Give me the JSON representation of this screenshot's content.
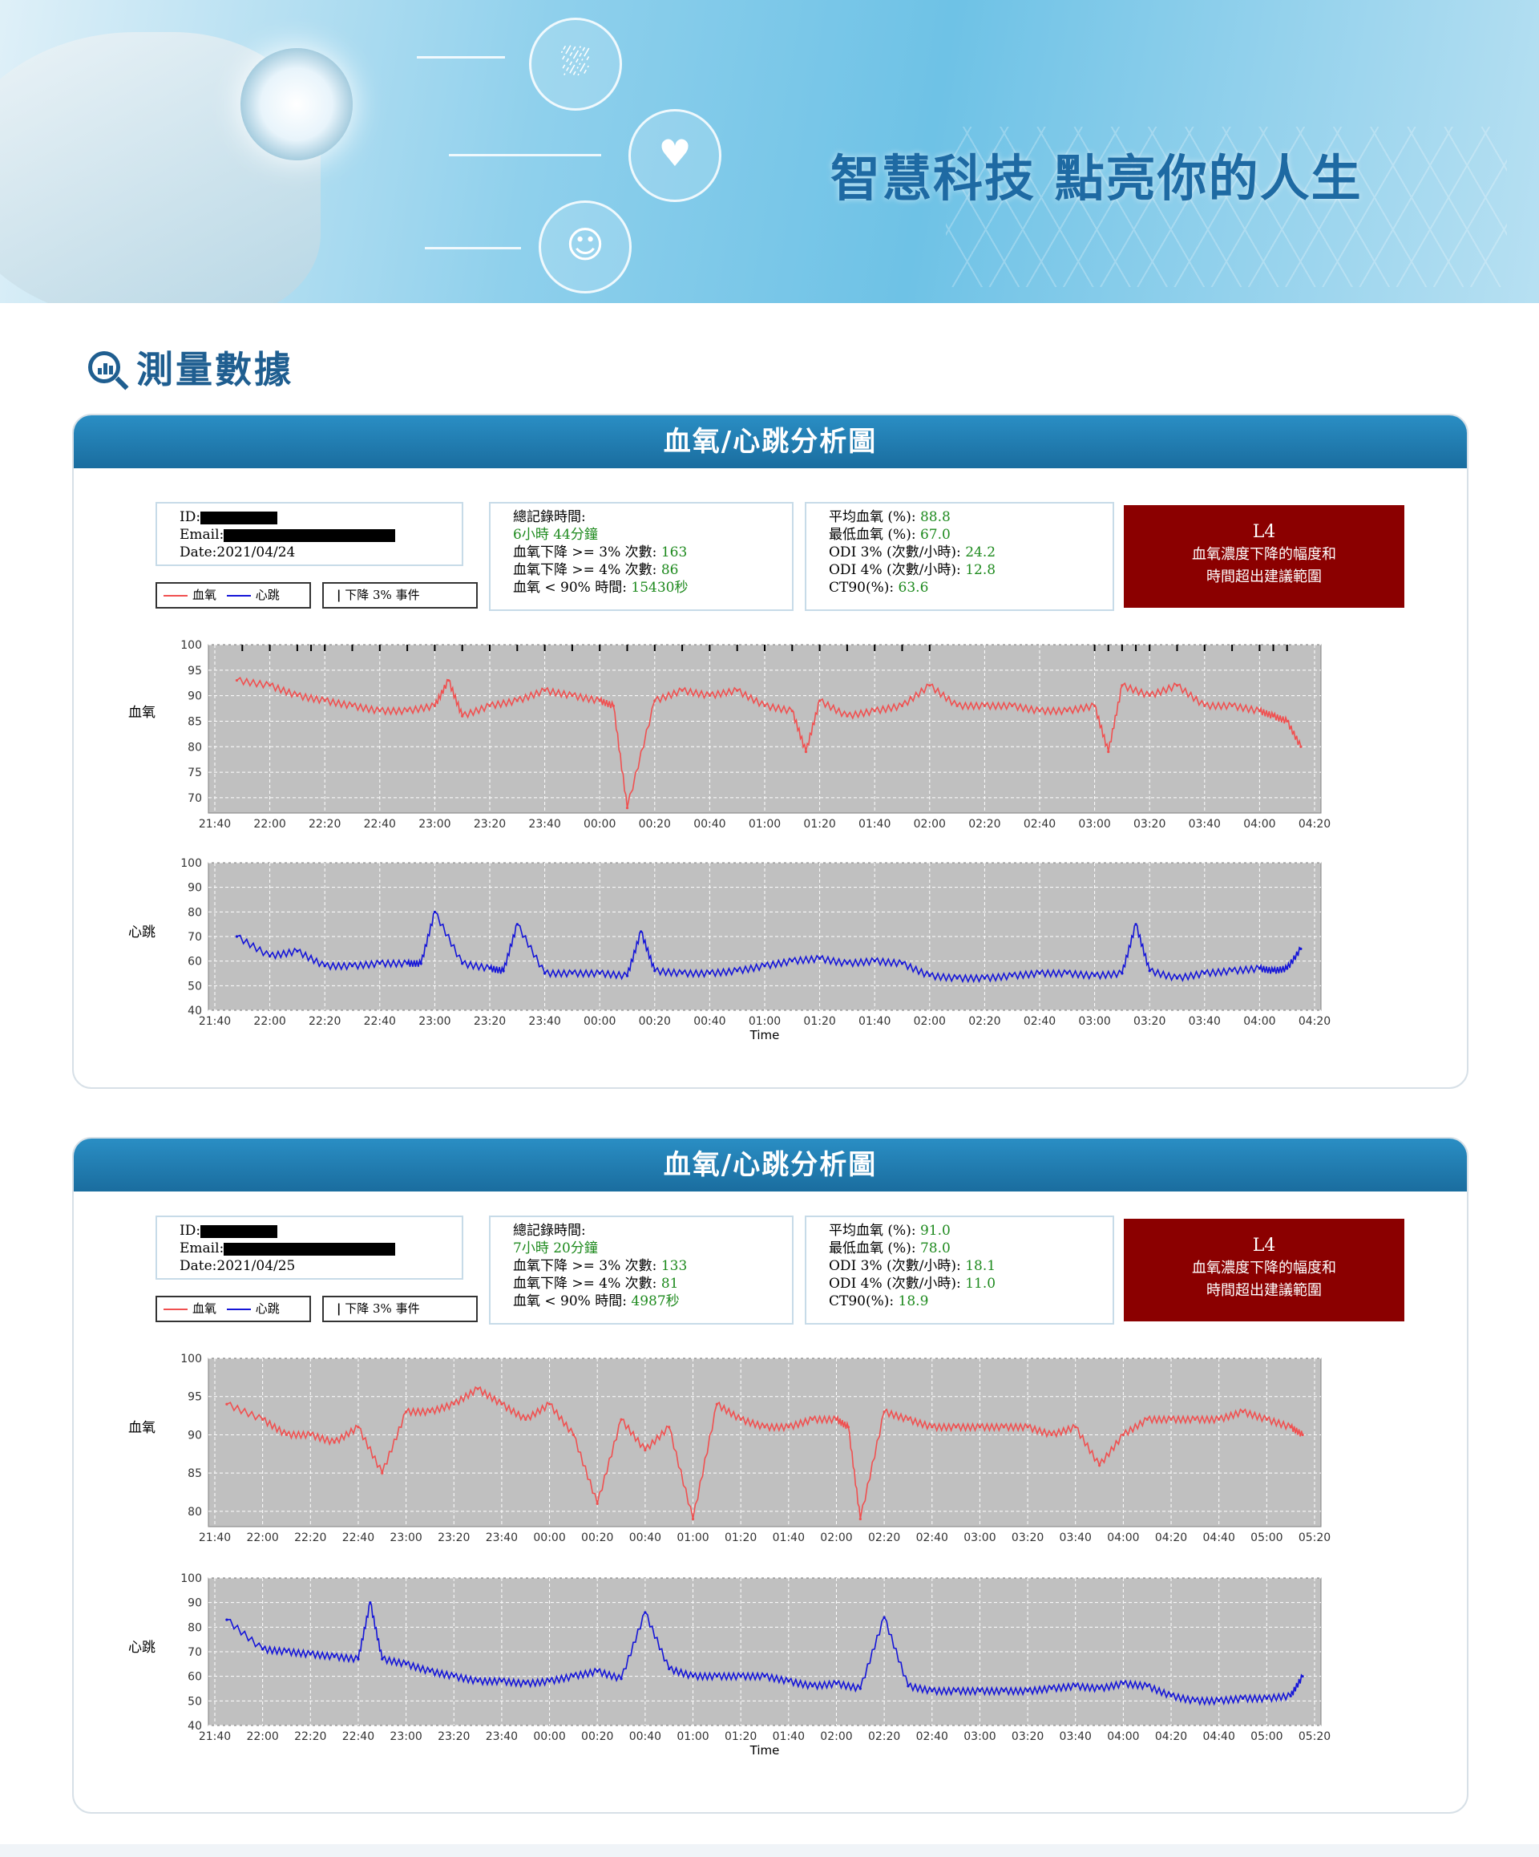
{
  "banner": {
    "slogan": "智慧科技 點亮你的人生",
    "icons": [
      "bed-sleep-icon",
      "heartbeat-icon",
      "breathing-face-icon",
      "stethoscope-icon"
    ]
  },
  "section": {
    "title": "測量數據",
    "icon": "search-chart-icon"
  },
  "reports": [
    {
      "title": "血氧/心跳分析圖",
      "info": {
        "id_label": "ID:",
        "email_label": "Email:",
        "date": "Date:2021/04/24"
      },
      "legend": {
        "spo2": "血氧",
        "hr": "心跳",
        "event": "下降 3% 事件"
      },
      "stats1": {
        "total_label": "總記錄時間:",
        "total_value": "6小時 44分鐘",
        "drop3_label": "血氧下降 >= 3% 次數:",
        "drop3_value": "163",
        "drop4_label": "血氧下降 >= 4% 次數:",
        "drop4_value": "86",
        "lt90_label": "血氧 < 90% 時間:",
        "lt90_value": "15430秒"
      },
      "stats2": {
        "avg_label": "平均血氧 (%):",
        "avg_value": "88.8",
        "min_label": "最低血氧 (%):",
        "min_value": "67.0",
        "odi3_label": "ODI 3% (次數/小時):",
        "odi3_value": "24.2",
        "odi4_label": "ODI 4% (次數/小時):",
        "odi4_value": "12.8",
        "ct90_label": "CT90(%):",
        "ct90_value": "63.6"
      },
      "alert": {
        "level": "L4",
        "line1": "血氧濃度下降的幅度和",
        "line2": "時間超出建議範圍"
      }
    },
    {
      "title": "血氧/心跳分析圖",
      "info": {
        "id_label": "ID:",
        "email_label": "Email:",
        "date": "Date:2021/04/25"
      },
      "legend": {
        "spo2": "血氧",
        "hr": "心跳",
        "event": "下降 3% 事件"
      },
      "stats1": {
        "total_label": "總記錄時間:",
        "total_value": "7小時 20分鐘",
        "drop3_label": "血氧下降 >= 3% 次數:",
        "drop3_value": "133",
        "drop4_label": "血氧下降 >= 4% 次數:",
        "drop4_value": "81",
        "lt90_label": "血氧 < 90% 時間:",
        "lt90_value": "4987秒"
      },
      "stats2": {
        "avg_label": "平均血氧 (%):",
        "avg_value": "91.0",
        "min_label": "最低血氧 (%):",
        "min_value": "78.0",
        "odi3_label": "ODI 3% (次數/小時):",
        "odi3_value": "18.1",
        "odi4_label": "ODI 4% (次數/小時):",
        "odi4_value": "11.0",
        "ct90_label": "CT90(%):",
        "ct90_value": "18.9"
      },
      "alert": {
        "level": "L4",
        "line1": "血氧濃度下降的幅度和",
        "line2": "時間超出建議範圍"
      }
    }
  ],
  "colors": {
    "spo2": "#f05050",
    "hr": "#1515d8",
    "plot_bg": "#c0c0c0",
    "header": "#1f7bb0",
    "alert": "#8b0000"
  },
  "chart_data": [
    {
      "type": "line",
      "ylabel": "血氧",
      "xlabel": "",
      "ylim": [
        67,
        100
      ],
      "yticks": [
        100,
        95,
        90,
        85,
        80,
        75,
        70
      ],
      "xticks": [
        "21:40",
        "22:00",
        "22:20",
        "22:40",
        "23:00",
        "23:20",
        "23:40",
        "00:00",
        "00:20",
        "00:40",
        "01:00",
        "01:20",
        "01:40",
        "02:00",
        "02:20",
        "02:40",
        "03:00",
        "03:20",
        "03:40",
        "04:00",
        "04:20"
      ],
      "series": [
        {
          "name": "血氧",
          "color": "#f05050",
          "x": [
            "21:48",
            "22:00",
            "22:10",
            "22:20",
            "22:30",
            "22:40",
            "22:50",
            "23:00",
            "23:05",
            "23:10",
            "23:20",
            "23:30",
            "23:40",
            "23:50",
            "00:00",
            "00:05",
            "00:10",
            "00:20",
            "00:30",
            "00:40",
            "00:50",
            "01:00",
            "01:10",
            "01:15",
            "01:20",
            "01:30",
            "01:40",
            "01:50",
            "02:00",
            "02:10",
            "02:20",
            "02:30",
            "02:40",
            "02:50",
            "03:00",
            "03:05",
            "03:10",
            "03:20",
            "03:30",
            "03:40",
            "03:50",
            "04:00",
            "04:05",
            "04:10",
            "04:15"
          ],
          "y": [
            93,
            92,
            90,
            89,
            88,
            87,
            87,
            88,
            93,
            86,
            88,
            89,
            91,
            90,
            89,
            88,
            68,
            89,
            91,
            90,
            91,
            88,
            87,
            79,
            89,
            86,
            87,
            88,
            92,
            88,
            88,
            88,
            87,
            87,
            88,
            79,
            92,
            90,
            92,
            88,
            88,
            87,
            86,
            85,
            80
          ]
        },
        {
          "name": "下降 3% 事件",
          "type": "event",
          "color": "#000000",
          "x": [
            "21:50",
            "22:00",
            "22:10",
            "22:15",
            "22:20",
            "22:30",
            "22:40",
            "22:50",
            "23:00",
            "23:10",
            "23:20",
            "23:30",
            "23:40",
            "23:50",
            "00:00",
            "00:10",
            "00:20",
            "00:30",
            "00:40",
            "00:50",
            "01:00",
            "01:10",
            "01:20",
            "01:30",
            "01:40",
            "01:50",
            "02:00",
            "03:00",
            "03:05",
            "03:10",
            "03:15",
            "03:20",
            "03:30",
            "03:40",
            "03:50",
            "04:00",
            "04:05",
            "04:10"
          ]
        }
      ]
    },
    {
      "type": "line",
      "ylabel": "心跳",
      "xlabel": "Time",
      "ylim": [
        40,
        100
      ],
      "yticks": [
        100,
        90,
        80,
        70,
        60,
        50,
        40
      ],
      "xticks": [
        "21:40",
        "22:00",
        "22:20",
        "22:40",
        "23:00",
        "23:20",
        "23:40",
        "00:00",
        "00:20",
        "00:40",
        "01:00",
        "01:20",
        "01:40",
        "02:00",
        "02:20",
        "02:40",
        "03:00",
        "03:20",
        "03:40",
        "04:00",
        "04:20"
      ],
      "series": [
        {
          "name": "心跳",
          "color": "#1515d8",
          "x": [
            "21:48",
            "22:00",
            "22:10",
            "22:20",
            "22:30",
            "22:40",
            "22:50",
            "22:55",
            "23:00",
            "23:10",
            "23:20",
            "23:25",
            "23:30",
            "23:40",
            "23:50",
            "00:00",
            "00:10",
            "00:15",
            "00:20",
            "00:30",
            "00:40",
            "00:50",
            "01:00",
            "01:10",
            "01:20",
            "01:30",
            "01:40",
            "01:50",
            "02:00",
            "02:10",
            "02:20",
            "02:30",
            "02:40",
            "02:50",
            "03:00",
            "03:10",
            "03:15",
            "03:20",
            "03:30",
            "03:40",
            "03:50",
            "04:00",
            "04:05",
            "04:10",
            "04:15"
          ],
          "y": [
            70,
            62,
            64,
            58,
            58,
            59,
            59,
            59,
            80,
            59,
            57,
            56,
            75,
            55,
            55,
            55,
            54,
            72,
            56,
            55,
            55,
            56,
            58,
            60,
            61,
            59,
            60,
            59,
            54,
            53,
            53,
            54,
            55,
            55,
            54,
            55,
            75,
            56,
            53,
            55,
            56,
            57,
            56,
            57,
            65
          ]
        }
      ]
    },
    {
      "type": "line",
      "ylabel": "血氧",
      "xlabel": "",
      "ylim": [
        78,
        100
      ],
      "yticks": [
        100,
        95,
        90,
        85,
        80
      ],
      "xticks": [
        "21:40",
        "22:00",
        "22:20",
        "22:40",
        "23:00",
        "23:20",
        "23:40",
        "00:00",
        "00:20",
        "00:40",
        "01:00",
        "01:20",
        "01:40",
        "02:00",
        "02:20",
        "02:40",
        "03:00",
        "03:20",
        "03:40",
        "04:00",
        "04:20",
        "04:40",
        "05:00",
        "05:20"
      ],
      "series": [
        {
          "name": "血氧",
          "color": "#f05050",
          "x": [
            "21:45",
            "22:00",
            "22:10",
            "22:20",
            "22:30",
            "22:40",
            "22:50",
            "23:00",
            "23:10",
            "23:20",
            "23:30",
            "23:40",
            "23:50",
            "00:00",
            "00:10",
            "00:20",
            "00:30",
            "00:40",
            "00:50",
            "01:00",
            "01:10",
            "01:20",
            "01:30",
            "01:40",
            "01:50",
            "02:00",
            "02:05",
            "02:10",
            "02:20",
            "02:30",
            "02:40",
            "02:50",
            "03:00",
            "03:10",
            "03:20",
            "03:30",
            "03:40",
            "03:50",
            "04:00",
            "04:10",
            "04:20",
            "04:30",
            "04:40",
            "04:50",
            "05:00",
            "05:10",
            "05:15"
          ],
          "y": [
            94,
            92,
            90,
            90,
            89,
            91,
            85,
            93,
            93,
            94,
            96,
            94,
            92,
            94,
            90,
            81,
            92,
            88,
            91,
            79,
            94,
            92,
            91,
            91,
            92,
            92,
            91,
            79,
            93,
            92,
            91,
            91,
            91,
            91,
            91,
            90,
            91,
            86,
            90,
            92,
            92,
            92,
            92,
            93,
            92,
            91,
            90
          ]
        }
      ]
    },
    {
      "type": "line",
      "ylabel": "心跳",
      "xlabel": "Time",
      "ylim": [
        40,
        100
      ],
      "yticks": [
        100,
        90,
        80,
        70,
        60,
        50,
        40
      ],
      "xticks": [
        "21:40",
        "22:00",
        "22:20",
        "22:40",
        "23:00",
        "23:20",
        "23:40",
        "00:00",
        "00:20",
        "00:40",
        "01:00",
        "01:20",
        "01:40",
        "02:00",
        "02:20",
        "02:40",
        "03:00",
        "03:20",
        "03:40",
        "04:00",
        "04:20",
        "04:40",
        "05:00",
        "05:20"
      ],
      "series": [
        {
          "name": "心跳",
          "color": "#1515d8",
          "x": [
            "21:45",
            "22:00",
            "22:10",
            "22:20",
            "22:30",
            "22:40",
            "22:45",
            "22:50",
            "23:00",
            "23:10",
            "23:20",
            "23:30",
            "23:40",
            "23:50",
            "00:00",
            "00:10",
            "00:20",
            "00:30",
            "00:40",
            "00:50",
            "01:00",
            "01:10",
            "01:20",
            "01:30",
            "01:40",
            "01:50",
            "02:00",
            "02:10",
            "02:20",
            "02:30",
            "02:40",
            "02:50",
            "03:00",
            "03:10",
            "03:20",
            "03:30",
            "03:40",
            "03:50",
            "04:00",
            "04:10",
            "04:20",
            "04:30",
            "04:40",
            "04:50",
            "05:00",
            "05:10",
            "05:15"
          ],
          "y": [
            83,
            71,
            70,
            69,
            68,
            67,
            90,
            67,
            65,
            62,
            60,
            58,
            58,
            57,
            58,
            60,
            62,
            59,
            86,
            63,
            60,
            60,
            60,
            60,
            58,
            56,
            57,
            55,
            84,
            56,
            54,
            54,
            54,
            54,
            54,
            55,
            56,
            55,
            57,
            56,
            52,
            50,
            50,
            51,
            51,
            52,
            60
          ]
        }
      ]
    }
  ]
}
